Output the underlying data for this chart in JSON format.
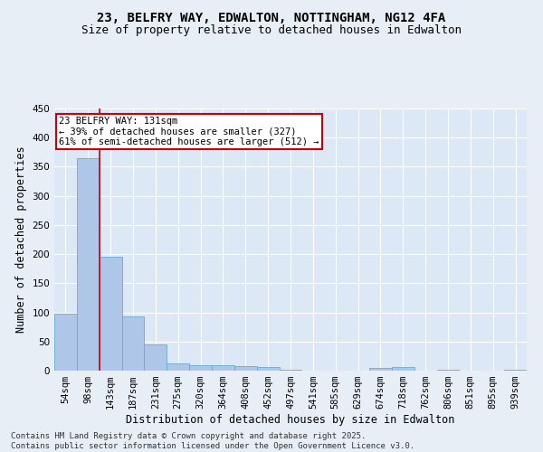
{
  "title": "23, BELFRY WAY, EDWALTON, NOTTINGHAM, NG12 4FA",
  "subtitle": "Size of property relative to detached houses in Edwalton",
  "xlabel": "Distribution of detached houses by size in Edwalton",
  "ylabel": "Number of detached properties",
  "categories": [
    "54sqm",
    "98sqm",
    "143sqm",
    "187sqm",
    "231sqm",
    "275sqm",
    "320sqm",
    "364sqm",
    "408sqm",
    "452sqm",
    "497sqm",
    "541sqm",
    "585sqm",
    "629sqm",
    "674sqm",
    "718sqm",
    "762sqm",
    "806sqm",
    "851sqm",
    "895sqm",
    "939sqm"
  ],
  "values": [
    98,
    365,
    195,
    93,
    45,
    13,
    10,
    9,
    7,
    6,
    1,
    0,
    0,
    0,
    5,
    6,
    0,
    2,
    0,
    0,
    2
  ],
  "bar_color": "#aec6e8",
  "bar_edge_color": "#6aaad4",
  "vline_color": "#cc0000",
  "vline_x": 1.5,
  "annotation_text": "23 BELFRY WAY: 131sqm\n← 39% of detached houses are smaller (327)\n61% of semi-detached houses are larger (512) →",
  "annotation_box_color": "#ffffff",
  "annotation_box_edge": "#cc0000",
  "bg_color": "#e8eef5",
  "plot_bg_color": "#dce8f5",
  "grid_color": "#ffffff",
  "footnote": "Contains HM Land Registry data © Crown copyright and database right 2025.\nContains public sector information licensed under the Open Government Licence v3.0.",
  "ylim": [
    0,
    450
  ],
  "yticks": [
    0,
    50,
    100,
    150,
    200,
    250,
    300,
    350,
    400,
    450
  ],
  "title_fontsize": 10,
  "subtitle_fontsize": 9,
  "axis_label_fontsize": 8.5,
  "tick_fontsize": 7.5,
  "footnote_fontsize": 6.5
}
